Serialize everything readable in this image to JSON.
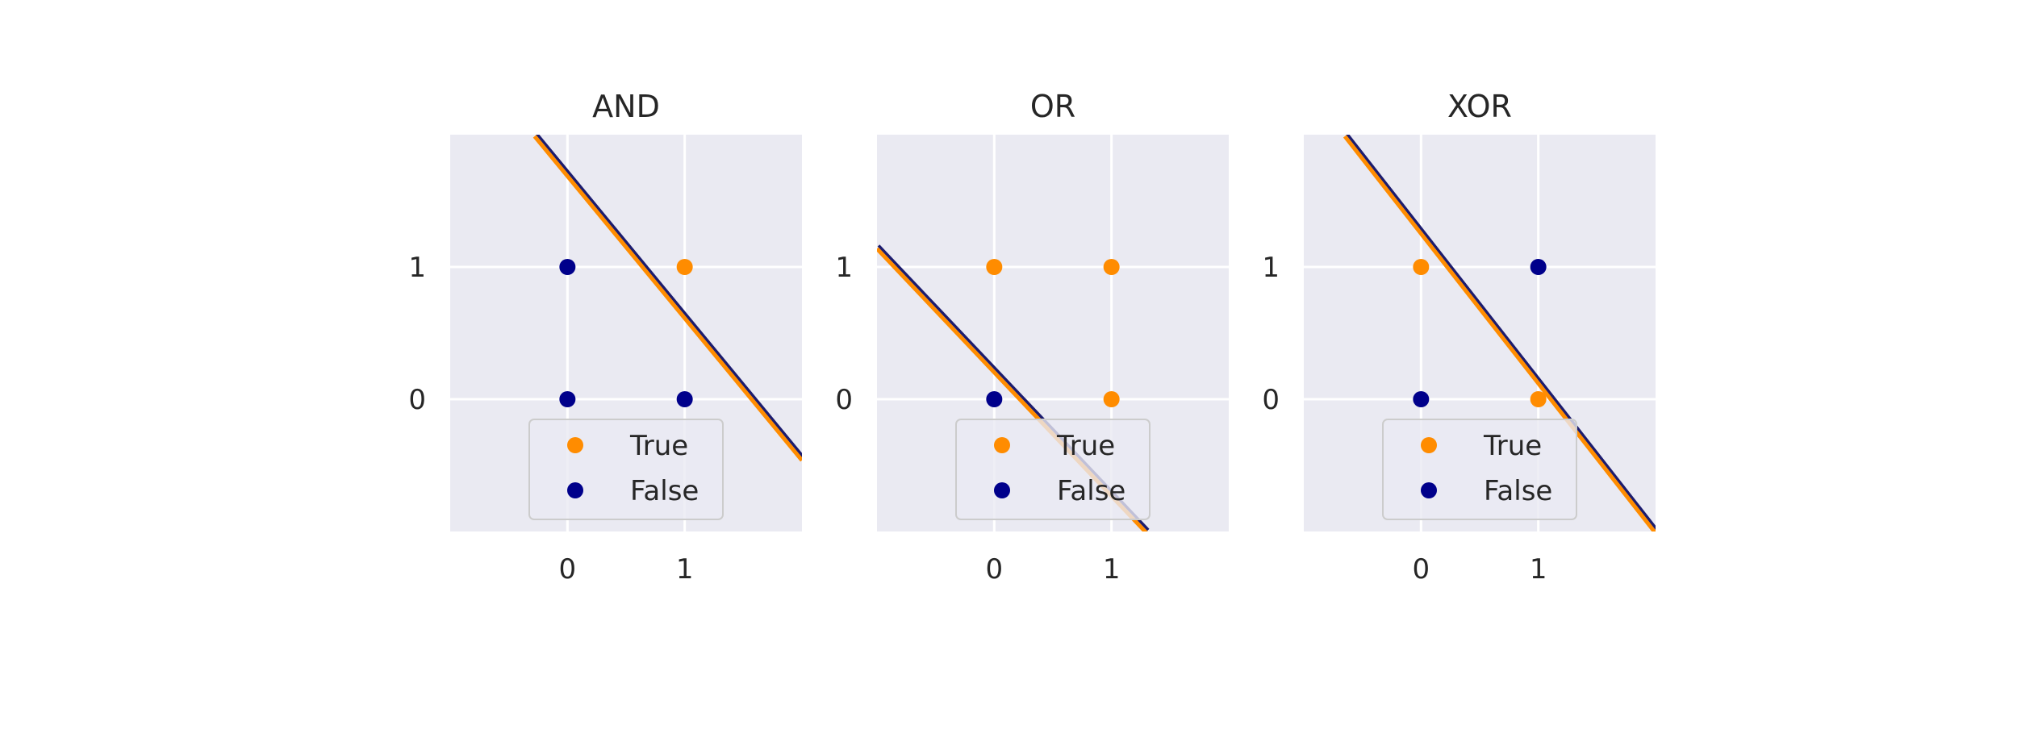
{
  "chart_data": [
    {
      "type": "scatter",
      "title": "AND",
      "xlabel": "",
      "ylabel": "",
      "xlim": [
        -1,
        2
      ],
      "ylim": [
        -1,
        2
      ],
      "xticks": [
        0,
        1
      ],
      "yticks": [
        0,
        1
      ],
      "x_tick_labels": [
        "0",
        "1"
      ],
      "y_tick_labels": [
        "0",
        "1"
      ],
      "grid": true,
      "legend": {
        "placement": "lower-center",
        "entries": [
          "True",
          "False"
        ]
      },
      "series": [
        {
          "name": "True",
          "color": "#ff8c00",
          "points": [
            [
              1,
              1
            ]
          ]
        },
        {
          "name": "False",
          "color": "#00008b",
          "points": [
            [
              0,
              0
            ],
            [
              0,
              1
            ],
            [
              1,
              0
            ]
          ]
        }
      ],
      "decision_boundary": [
        [
          -0.28,
          2.0
        ],
        [
          2.0,
          -0.45
        ]
      ]
    },
    {
      "type": "scatter",
      "title": "OR",
      "xlabel": "",
      "ylabel": "",
      "xlim": [
        -1,
        2
      ],
      "ylim": [
        -1,
        2
      ],
      "xticks": [
        0,
        1
      ],
      "yticks": [
        0,
        1
      ],
      "x_tick_labels": [
        "0",
        "1"
      ],
      "y_tick_labels": [
        "0",
        "1"
      ],
      "grid": true,
      "legend": {
        "placement": "lower-center",
        "entries": [
          "True",
          "False"
        ]
      },
      "series": [
        {
          "name": "True",
          "color": "#ff8c00",
          "points": [
            [
              0,
              1
            ],
            [
              1,
              1
            ],
            [
              1,
              0
            ]
          ]
        },
        {
          "name": "False",
          "color": "#00008b",
          "points": [
            [
              0,
              0
            ]
          ]
        }
      ],
      "decision_boundary": [
        [
          -1.0,
          1.15
        ],
        [
          1.3,
          -1.0
        ]
      ]
    },
    {
      "type": "scatter",
      "title": "XOR",
      "xlabel": "",
      "ylabel": "",
      "xlim": [
        -1,
        2
      ],
      "ylim": [
        -1,
        2
      ],
      "xticks": [
        0,
        1
      ],
      "yticks": [
        0,
        1
      ],
      "x_tick_labels": [
        "0",
        "1"
      ],
      "y_tick_labels": [
        "0",
        "1"
      ],
      "grid": true,
      "legend": {
        "placement": "lower-center",
        "entries": [
          "True",
          "False"
        ]
      },
      "series": [
        {
          "name": "True",
          "color": "#ff8c00",
          "points": [
            [
              0,
              1
            ],
            [
              1,
              0
            ]
          ]
        },
        {
          "name": "False",
          "color": "#00008b",
          "points": [
            [
              0,
              0
            ],
            [
              1,
              1
            ]
          ]
        }
      ],
      "decision_boundary": [
        [
          -0.65,
          2.0
        ],
        [
          2.0,
          -1.0
        ]
      ]
    }
  ],
  "colors": {
    "axes_background": "#eaeaf2",
    "grid": "#ffffff",
    "boundary_dark": "#1c1c6e",
    "legend_border": "#cccccc"
  }
}
